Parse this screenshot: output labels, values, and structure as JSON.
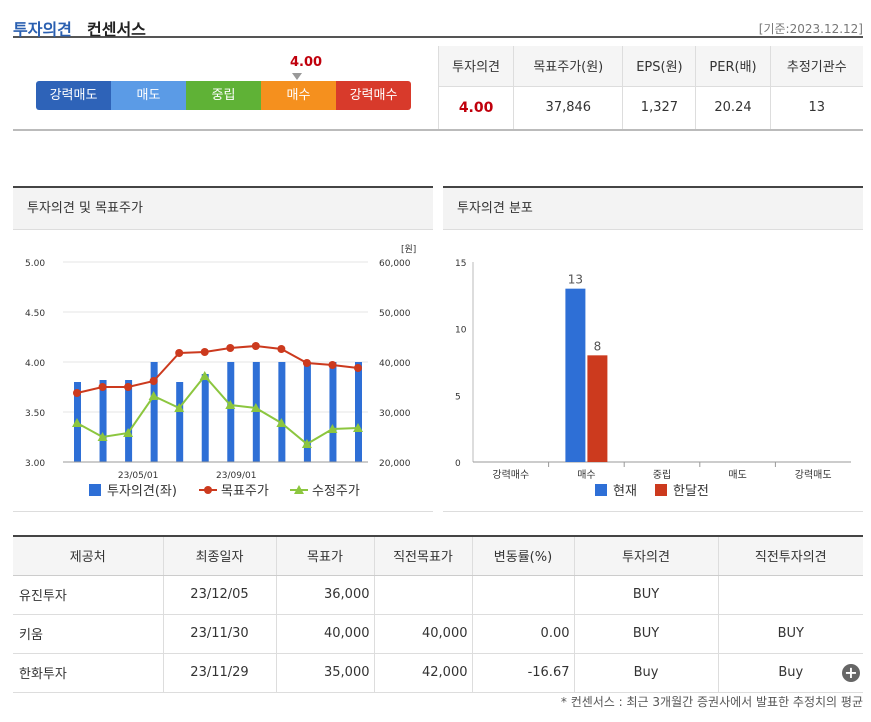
{
  "header": {
    "title_a": "투자의견",
    "title_b": "컨센서스",
    "basis": "[기준:2023.12.12]"
  },
  "scale": {
    "value": "4.00",
    "segments": [
      {
        "label": "강력매도",
        "color": "#2e63b8"
      },
      {
        "label": "매도",
        "color": "#5b9be6"
      },
      {
        "label": "중립",
        "color": "#5fb236"
      },
      {
        "label": "매수",
        "color": "#f5901e"
      },
      {
        "label": "강력매수",
        "color": "#d83a2b"
      }
    ]
  },
  "summary": {
    "headers": [
      "투자의견",
      "목표주가(원)",
      "EPS(원)",
      "PER(배)",
      "추정기관수"
    ],
    "values": [
      "4.00",
      "37,846",
      "1,327",
      "20.24",
      "13"
    ]
  },
  "chart1": {
    "title": "투자의견 및 목표주가",
    "unit": "[원]",
    "left_ticks": [
      "5.00",
      "4.50",
      "4.00",
      "3.50",
      "3.00"
    ],
    "right_ticks": [
      "60,000",
      "50,000",
      "40,000",
      "30,000",
      "20,000"
    ],
    "x_labels": [
      "23/05/01",
      "23/09/01"
    ],
    "legend": [
      "투자의견(좌)",
      "목표주가",
      "수정주가"
    ],
    "colors": {
      "bar": "#2e6fd6",
      "target": "#cc3a1e",
      "price": "#8cc63f"
    }
  },
  "chart2": {
    "title": "투자의견 분포",
    "y_ticks": [
      "15",
      "10",
      "5",
      "0"
    ],
    "categories": [
      "강력매수",
      "매수",
      "중립",
      "매도",
      "강력매도"
    ],
    "legend": [
      "현재",
      "한달전"
    ],
    "colors": {
      "current": "#2e6fd6",
      "prev": "#cc3a1e"
    }
  },
  "chart_data": [
    {
      "type": "bar+line",
      "title": "투자의견 및 목표주가",
      "ylim_left": [
        3.0,
        5.0
      ],
      "ylim_right": [
        20000,
        60000
      ],
      "x_ticks": [
        "23/05/01",
        "23/09/01"
      ],
      "series": [
        {
          "name": "투자의견(좌)",
          "type": "bar",
          "axis": "left",
          "values": [
            3.8,
            3.82,
            3.82,
            4.0,
            3.8,
            3.88,
            4.0,
            4.0,
            4.0,
            4.0,
            4.0,
            4.0
          ]
        },
        {
          "name": "목표주가",
          "type": "line",
          "axis": "right",
          "values": [
            33800,
            35000,
            35000,
            36200,
            41800,
            42000,
            42800,
            43200,
            42600,
            39800,
            39400,
            38800
          ]
        },
        {
          "name": "수정주가",
          "type": "line",
          "axis": "right",
          "values": [
            27800,
            25000,
            25800,
            33200,
            30800,
            37200,
            31400,
            30800,
            27800,
            23600,
            26600,
            26800
          ]
        }
      ]
    },
    {
      "type": "bar",
      "title": "투자의견 분포",
      "categories": [
        "강력매수",
        "매수",
        "중립",
        "매도",
        "강력매도"
      ],
      "ylim": [
        0,
        15
      ],
      "series": [
        {
          "name": "현재",
          "values": [
            0,
            13,
            0,
            0,
            0
          ]
        },
        {
          "name": "한달전",
          "values": [
            0,
            8,
            0,
            0,
            0
          ]
        }
      ]
    }
  ],
  "detail": {
    "headers": [
      "제공처",
      "최종일자",
      "목표가",
      "직전목표가",
      "변동률(%)",
      "투자의견",
      "직전투자의견"
    ],
    "rows": [
      [
        "유진투자",
        "23/12/05",
        "36,000",
        "",
        "",
        "BUY",
        ""
      ],
      [
        "키움",
        "23/11/30",
        "40,000",
        "40,000",
        "0.00",
        "BUY",
        "BUY"
      ],
      [
        "한화투자",
        "23/11/29",
        "35,000",
        "42,000",
        "-16.67",
        "Buy",
        "Buy"
      ]
    ],
    "more_label": "+"
  },
  "footnote": "* 컨센서스 : 최근 3개월간 증권사에서 발표한 추정치의 평균"
}
